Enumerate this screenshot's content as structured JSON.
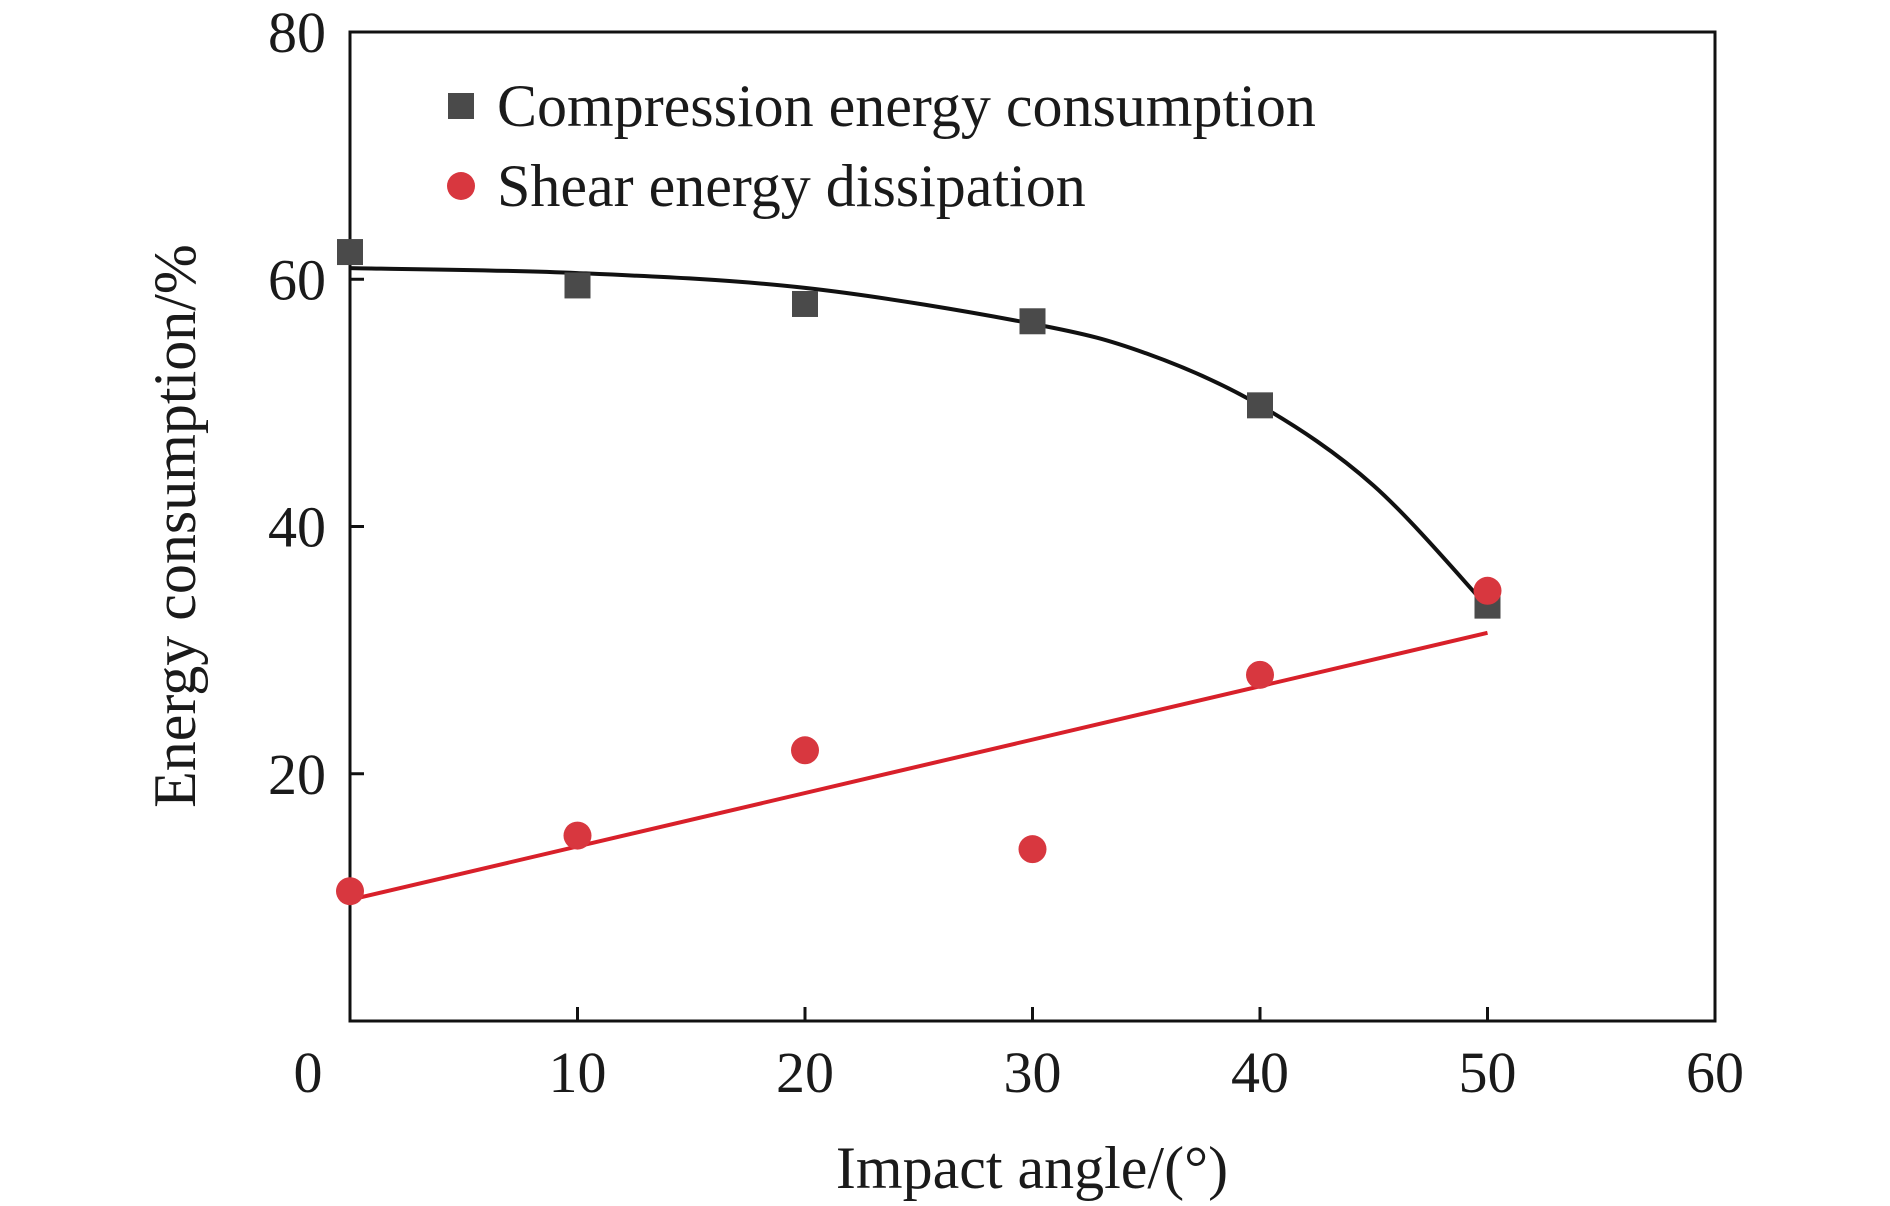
{
  "chart_data": {
    "type": "scatter",
    "xlabel": "Impact angle/(°)",
    "ylabel": "Energy consumption/%",
    "xlim": [
      0,
      60
    ],
    "ylim": [
      0,
      80
    ],
    "xticks": [
      "0",
      "10",
      "20",
      "30",
      "40",
      "50",
      "60"
    ],
    "yticks": [
      "20",
      "40",
      "60",
      "80"
    ],
    "grid": false,
    "legend_position": "top-left",
    "series": [
      {
        "name": "Compression energy consumption",
        "marker": "square",
        "color": "#4a4a4a",
        "x": [
          0,
          10,
          20,
          30,
          40,
          50
        ],
        "y": [
          62.2,
          59.5,
          58.0,
          56.6,
          49.8,
          33.6
        ],
        "fit": {
          "color": "#111111",
          "x": [
            0,
            10,
            20,
            30,
            35,
            40,
            45,
            50
          ],
          "y": [
            60.9,
            60.5,
            59.3,
            56.4,
            54.0,
            49.8,
            43.3,
            33.5
          ]
        }
      },
      {
        "name": "Shear energy dissipation",
        "marker": "circle",
        "color": "#d8373f",
        "x": [
          0,
          10,
          20,
          30,
          40,
          50
        ],
        "y": [
          10.5,
          15.0,
          21.9,
          13.9,
          28.0,
          34.8
        ],
        "fit": {
          "color": "#d8202a",
          "x": [
            0,
            50
          ],
          "y": [
            9.8,
            31.4
          ]
        }
      }
    ]
  }
}
